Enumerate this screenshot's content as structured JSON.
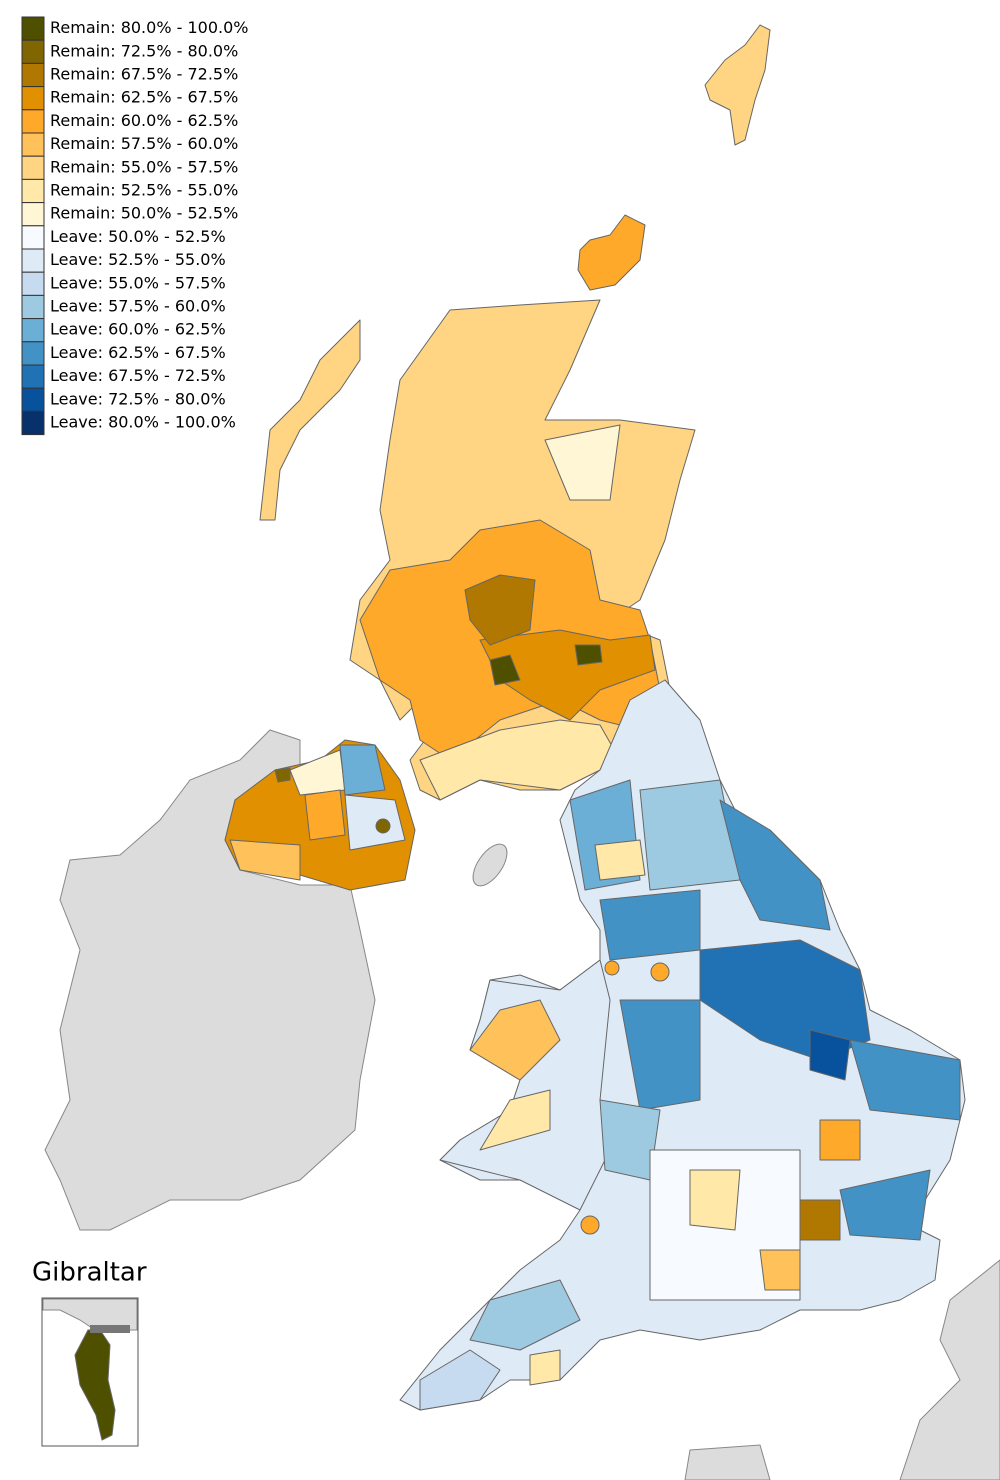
{
  "legend": {
    "items": [
      {
        "label": "Remain: 80.0% - 100.0%",
        "color": "#4f4f00"
      },
      {
        "label": "Remain: 72.5% - 80.0%",
        "color": "#806600"
      },
      {
        "label": "Remain: 67.5% - 72.5%",
        "color": "#b07800"
      },
      {
        "label": "Remain: 62.5% - 67.5%",
        "color": "#e09000"
      },
      {
        "label": "Remain: 60.0% - 62.5%",
        "color": "#ffa92b"
      },
      {
        "label": "Remain: 57.5% - 60.0%",
        "color": "#ffc15a"
      },
      {
        "label": "Remain: 55.0% - 57.5%",
        "color": "#ffd583"
      },
      {
        "label": "Remain: 52.5% - 55.0%",
        "color": "#ffe8a8"
      },
      {
        "label": "Remain: 50.0% - 52.5%",
        "color": "#fff6d6"
      },
      {
        "label": "Leave: 50.0% - 52.5%",
        "color": "#f7fbff"
      },
      {
        "label": "Leave: 52.5% - 55.0%",
        "color": "#deebf7"
      },
      {
        "label": "Leave: 55.0% - 57.5%",
        "color": "#c6dbef"
      },
      {
        "label": "Leave: 57.5% - 60.0%",
        "color": "#9ecae1"
      },
      {
        "label": "Leave: 60.0% - 62.5%",
        "color": "#6baed6"
      },
      {
        "label": "Leave: 62.5% - 67.5%",
        "color": "#4292c6"
      },
      {
        "label": "Leave: 67.5% - 72.5%",
        "color": "#2171b5"
      },
      {
        "label": "Leave: 72.5% - 80.0%",
        "color": "#08519c"
      },
      {
        "label": "Leave: 80.0% - 100.0%",
        "color": "#08306b"
      }
    ]
  },
  "inset": {
    "title": "Gibraltar"
  }
}
